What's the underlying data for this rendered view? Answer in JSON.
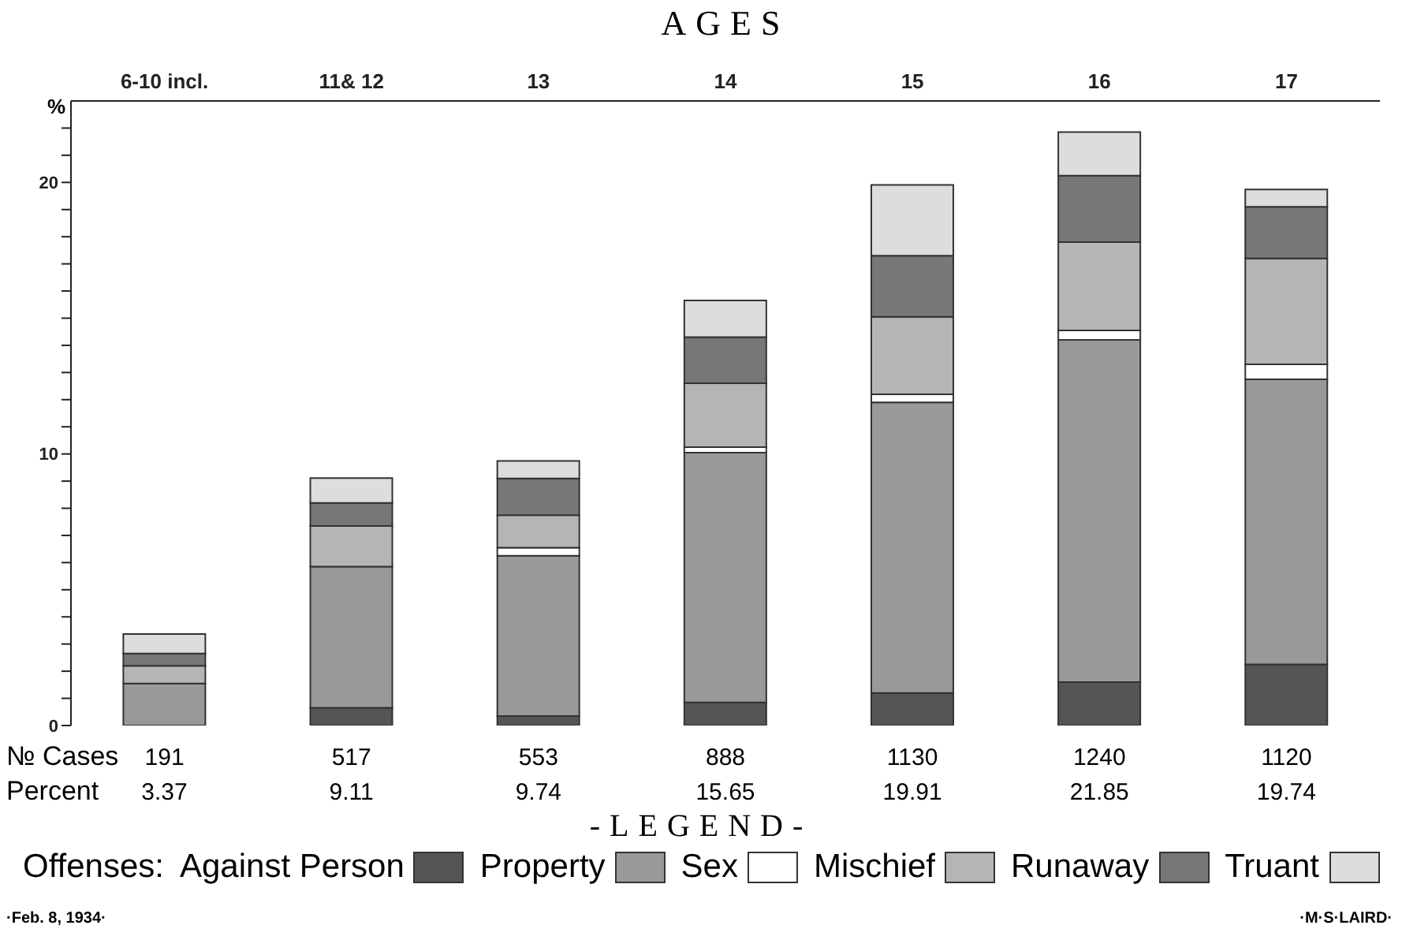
{
  "chart_data": {
    "type": "bar",
    "stacked": true,
    "xlabel": "AGES",
    "ylabel": "%",
    "legend_title": "Offenses:",
    "legend": "bottom",
    "categories": [
      "6-10 incl.",
      "11& 12",
      "13",
      "14",
      "15",
      "16",
      "17"
    ],
    "series": [
      {
        "name": "Against Person",
        "color": "#555555",
        "values": [
          null,
          0.65,
          0.35,
          0.85,
          1.2,
          1.6,
          2.25
        ]
      },
      {
        "name": "Property",
        "color": "#999999",
        "values": [
          1.55,
          5.2,
          5.9,
          9.2,
          10.7,
          12.6,
          10.5
        ]
      },
      {
        "name": "Sex",
        "color": "#ffffff",
        "values": [
          null,
          0,
          0.3,
          0.2,
          0.3,
          0.35,
          0.55
        ]
      },
      {
        "name": "Mischief",
        "color": "#b5b5b5",
        "values": [
          0.65,
          1.5,
          1.2,
          2.35,
          2.85,
          3.25,
          3.9
        ]
      },
      {
        "name": "Runaway",
        "color": "#777777",
        "values": [
          0.45,
          0.85,
          1.35,
          1.7,
          2.25,
          2.45,
          1.9
        ]
      },
      {
        "name": "Truant",
        "color": "#dddddd",
        "values": [
          0.72,
          0.91,
          0.64,
          1.35,
          2.61,
          1.6,
          0.64
        ]
      }
    ],
    "ylim": [
      0,
      23
    ],
    "yticks": [
      0,
      {
        "value": 1,
        "label": null
      },
      {
        "value": 2,
        "label": null
      },
      {
        "value": 3,
        "label": null
      },
      {
        "value": 4,
        "label": null
      },
      {
        "value": 5,
        "label": null
      },
      {
        "value": 6,
        "label": null
      },
      {
        "value": 7,
        "label": null
      },
      {
        "value": 8,
        "label": null
      },
      {
        "value": 9,
        "label": null
      },
      10,
      {
        "value": 11,
        "label": null
      },
      {
        "value": 12,
        "label": null
      },
      {
        "value": 13,
        "label": null
      },
      {
        "value": 14,
        "label": null
      },
      {
        "value": 15,
        "label": null
      },
      {
        "value": 16,
        "label": null
      },
      {
        "value": 17,
        "label": null
      },
      {
        "value": 18,
        "label": null
      },
      {
        "value": 19,
        "label": null
      },
      20,
      {
        "value": 21,
        "label": null
      },
      {
        "value": 22,
        "label": null
      }
    ],
    "totals": [
      "3.37",
      "9.11",
      "9.74",
      "15.65",
      "19.91",
      "21.85",
      "19.74"
    ],
    "annotations": [
      "№ Cases",
      "Percent",
      "191",
      "517",
      "553",
      "888",
      "1130",
      "1240",
      "1120",
      "-LEGEND-",
      "·Feb. 8, 1934·",
      "·M·S·LAIRD·"
    ]
  }
}
